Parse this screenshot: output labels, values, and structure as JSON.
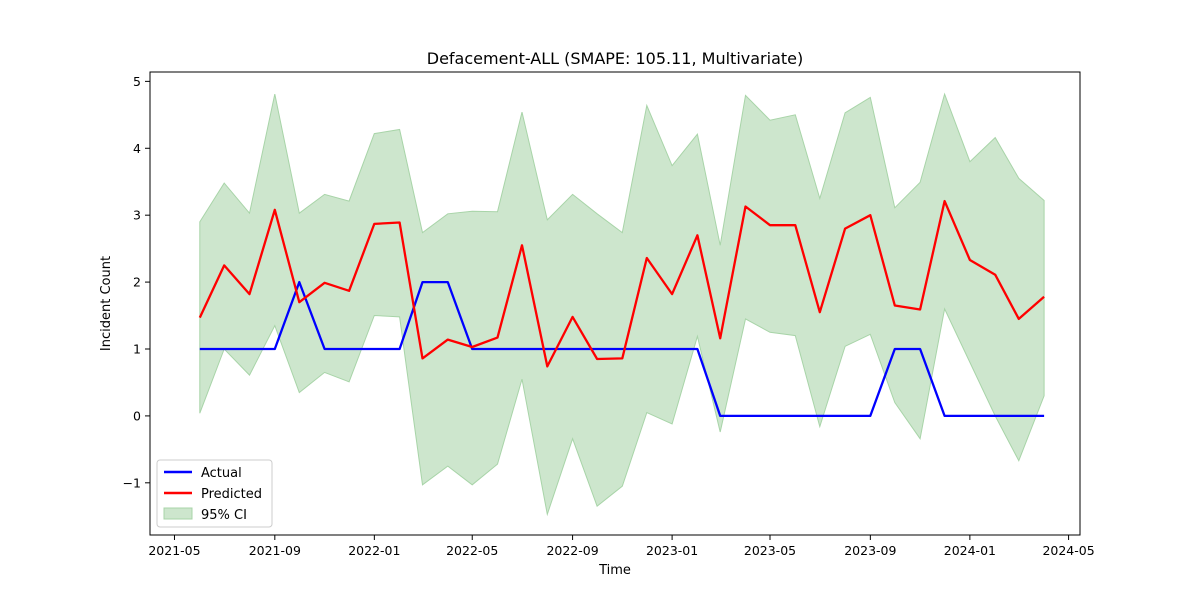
{
  "chart_data": {
    "type": "line",
    "title": "Defacement-ALL (SMAPE: 105.11, Multivariate)",
    "xlabel": "Time",
    "ylabel": "Incident Count",
    "x_ticks": [
      "2021-05",
      "2021-09",
      "2022-01",
      "2022-05",
      "2022-09",
      "2023-01",
      "2023-05",
      "2023-09",
      "2024-01",
      "2024-05"
    ],
    "y_ticks": [
      -1,
      0,
      1,
      2,
      3,
      4,
      5
    ],
    "xlim": [
      "2021-04-01",
      "2024-05-15"
    ],
    "ylim": [
      -1.78,
      5.14
    ],
    "grid": false,
    "legend_position": "lower-left",
    "x": [
      "2021-06",
      "2021-07",
      "2021-08",
      "2021-09",
      "2021-10",
      "2021-11",
      "2021-12",
      "2022-01",
      "2022-02",
      "2022-03",
      "2022-04",
      "2022-05",
      "2022-06",
      "2022-07",
      "2022-08",
      "2022-09",
      "2022-10",
      "2022-11",
      "2022-12",
      "2023-01",
      "2023-02",
      "2023-03",
      "2023-04",
      "2023-05",
      "2023-06",
      "2023-07",
      "2023-08",
      "2023-09",
      "2023-10",
      "2023-11",
      "2023-12",
      "2024-01",
      "2024-02",
      "2024-03",
      "2024-04"
    ],
    "series": [
      {
        "name": "Actual",
        "color": "#0000ff",
        "values": [
          1,
          1,
          1,
          1,
          2,
          1,
          1,
          1,
          1,
          2,
          2,
          1,
          1,
          1,
          1,
          1,
          1,
          1,
          1,
          1,
          1,
          0,
          0,
          0,
          0,
          0,
          0,
          0,
          1,
          1,
          0,
          0,
          0,
          0,
          0
        ]
      },
      {
        "name": "Predicted",
        "color": "#ff0000",
        "values": [
          1.47,
          2.25,
          1.82,
          3.08,
          1.7,
          1.99,
          1.87,
          2.87,
          2.89,
          0.86,
          1.14,
          1.03,
          1.17,
          2.55,
          0.74,
          1.48,
          0.85,
          0.86,
          2.36,
          1.82,
          2.7,
          1.16,
          3.13,
          2.85,
          2.85,
          1.55,
          2.8,
          3.0,
          1.65,
          1.59,
          3.21,
          2.33,
          2.11,
          1.45,
          1.78
        ]
      }
    ],
    "ci": {
      "name": "95% CI",
      "color": "#cde6cd",
      "edge_color": "#a8d4a8",
      "lower": [
        0.04,
        1.0,
        0.61,
        1.35,
        0.35,
        0.65,
        0.51,
        1.5,
        1.48,
        -1.03,
        -0.75,
        -1.03,
        -0.72,
        0.55,
        -1.47,
        -0.34,
        -1.35,
        -1.05,
        0.05,
        -0.12,
        1.19,
        -0.24,
        1.45,
        1.25,
        1.2,
        -0.16,
        1.04,
        1.22,
        0.2,
        -0.34,
        1.6,
        0.8,
        0.0,
        -0.67,
        0.3
      ],
      "upper": [
        2.9,
        3.48,
        3.03,
        4.81,
        3.03,
        3.31,
        3.21,
        4.22,
        4.28,
        2.74,
        3.02,
        3.06,
        3.05,
        4.54,
        2.93,
        3.31,
        3.02,
        2.74,
        4.64,
        3.74,
        4.21,
        2.55,
        4.79,
        4.42,
        4.5,
        3.25,
        4.53,
        4.76,
        3.11,
        3.49,
        4.81,
        3.8,
        4.16,
        3.55,
        3.22
      ]
    }
  }
}
